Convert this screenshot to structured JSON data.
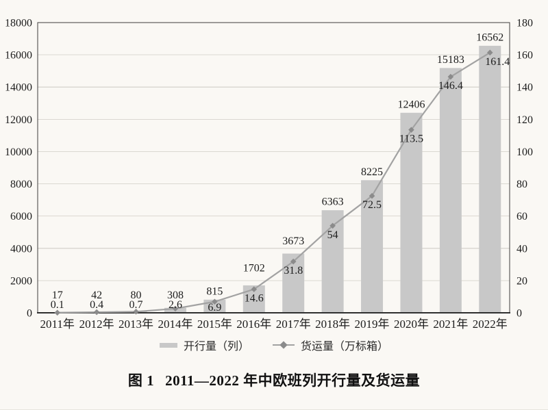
{
  "page": {
    "background": "#faf8f4"
  },
  "caption": {
    "figure_label": "图 1",
    "title": "2011—2022 年中欧班列开行量及货运量"
  },
  "legend": {
    "bar_label": "开行量（列）",
    "line_label": "货运量（万标箱）"
  },
  "chart_data": {
    "type": "bar",
    "subtype": "bar+line dual axis",
    "title": "图 1  2011—2022 年中欧班列开行量及货运量",
    "categories": [
      "2011年",
      "2012年",
      "2013年",
      "2014年",
      "2015年",
      "2016年",
      "2017年",
      "2018年",
      "2019年",
      "2020年",
      "2021年",
      "2022年"
    ],
    "series": [
      {
        "name": "开行量（列）",
        "type": "bar",
        "axis": "left",
        "values": [
          17,
          42,
          80,
          308,
          815,
          1702,
          3673,
          6363,
          8225,
          12406,
          15183,
          16562
        ]
      },
      {
        "name": "货运量（万标箱）",
        "type": "line",
        "axis": "right",
        "values": [
          0.1,
          0.4,
          0.7,
          2.6,
          6.9,
          14.6,
          31.8,
          54,
          72.5,
          113.5,
          146.4,
          161.4
        ]
      }
    ],
    "left_axis": {
      "min": 0,
      "max": 18000,
      "step": 2000,
      "tick_labels": [
        "0",
        "2000",
        "4000",
        "6000",
        "8000",
        "10000",
        "12000",
        "14000",
        "16000",
        "18000"
      ]
    },
    "right_axis": {
      "min": 0,
      "max": 180,
      "step": 20,
      "tick_labels": [
        "0",
        "20",
        "40",
        "60",
        "80",
        "100",
        "120",
        "140",
        "160",
        "180"
      ]
    },
    "grid": "horizontal",
    "legend_position": "bottom",
    "data_labels": "on",
    "colors": {
      "bar": "#c8c8c8",
      "line": "#a2a2a2",
      "marker": "#8b8b8b",
      "grid": "#dbd8d2",
      "axis": "#3d3d3d",
      "text": "#1c1c1c",
      "background": "#faf8f4"
    }
  }
}
